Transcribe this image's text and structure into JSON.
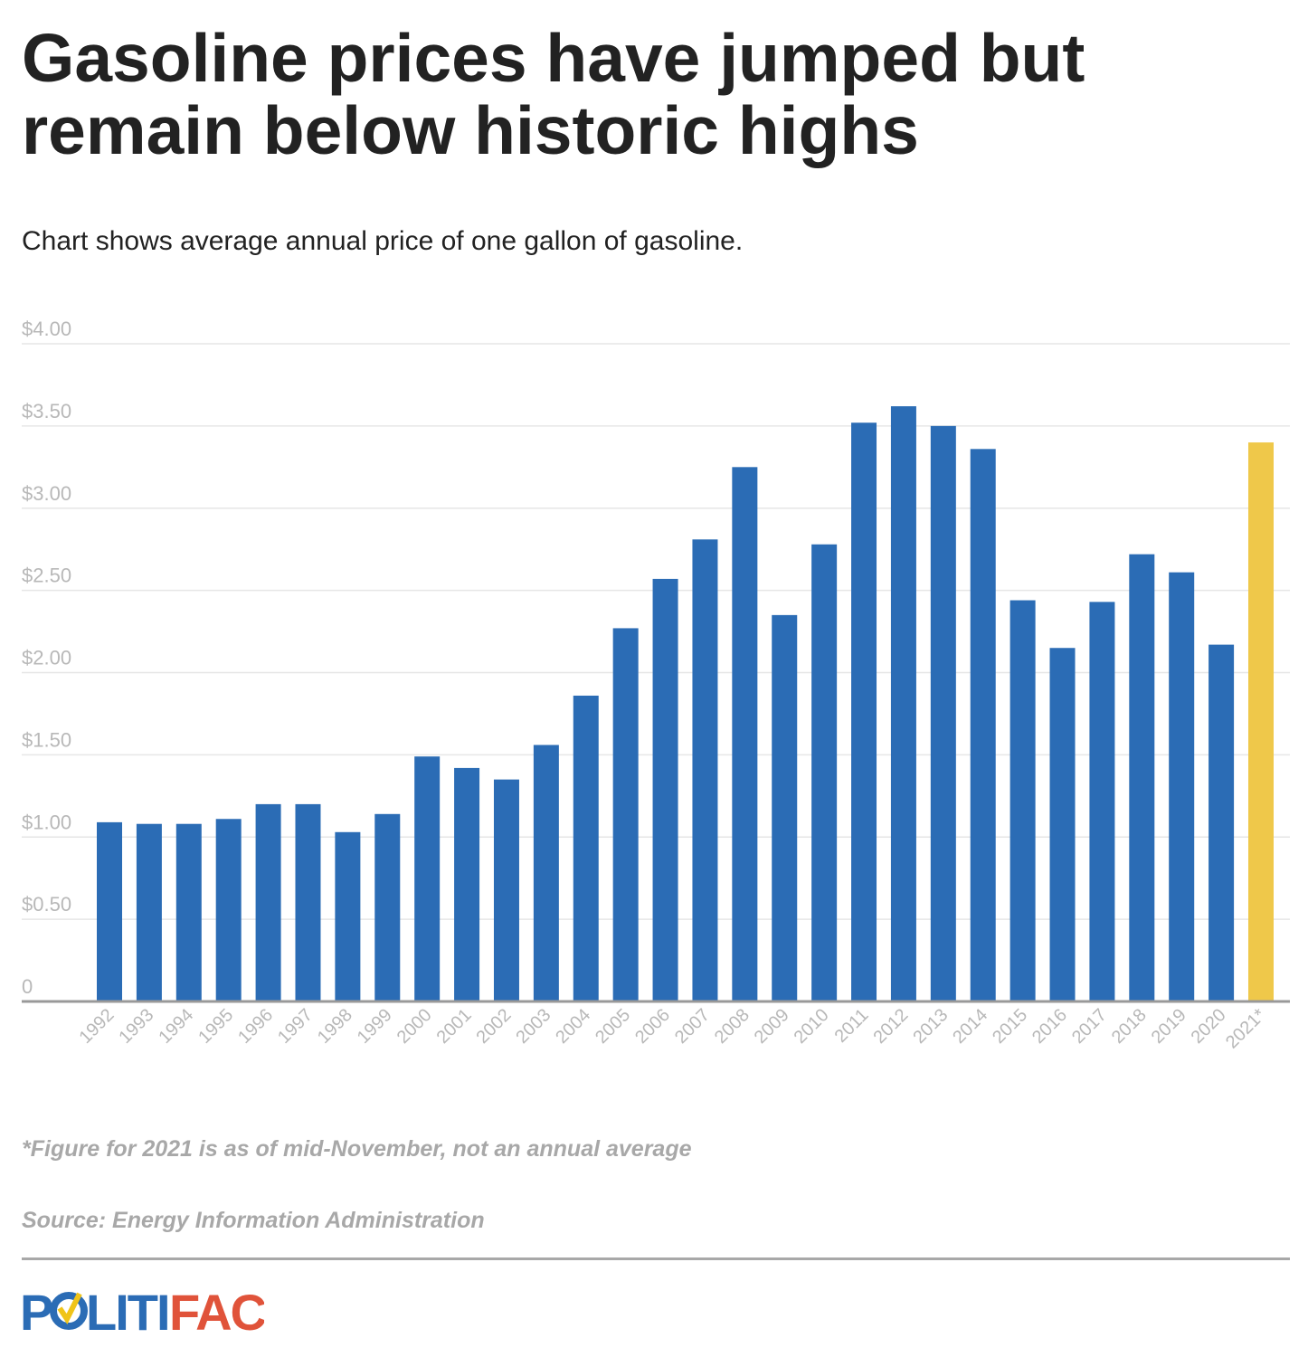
{
  "title": "Gasoline prices have jumped but remain below historic highs",
  "subtitle": "Chart shows average annual price of one gallon of gasoline.",
  "footnote": "*Figure for 2021 is as of mid-November, not an annual average",
  "source": "Source: Energy Information Administration",
  "logo": {
    "text_part1": "POLITI",
    "text_part2": "FACT",
    "colors": {
      "blue": "#2b6cb5",
      "red": "#e0533a",
      "yellow": "#f0c419"
    }
  },
  "chart_data": {
    "type": "bar",
    "title": "Gasoline prices have jumped but remain below historic highs",
    "xlabel": "",
    "ylabel": "",
    "ylim": [
      0,
      4
    ],
    "yticks": [
      0,
      0.5,
      1,
      1.5,
      2,
      2.5,
      3,
      3.5,
      4
    ],
    "ytick_labels": [
      "0",
      "$0.50",
      "$1.00",
      "$1.50",
      "$2.00",
      "$2.50",
      "$3.00",
      "$3.50",
      "$4.00"
    ],
    "grid": true,
    "categories": [
      "1992",
      "1993",
      "1994",
      "1995",
      "1996",
      "1997",
      "1998",
      "1999",
      "2000",
      "2001",
      "2002",
      "2003",
      "2004",
      "2005",
      "2006",
      "2007",
      "2008",
      "2009",
      "2010",
      "2011",
      "2012",
      "2013",
      "2014",
      "2015",
      "2016",
      "2017",
      "2018",
      "2019",
      "2020",
      "2021*"
    ],
    "values": [
      1.09,
      1.08,
      1.08,
      1.11,
      1.2,
      1.2,
      1.03,
      1.14,
      1.49,
      1.42,
      1.35,
      1.56,
      1.86,
      2.27,
      2.57,
      2.81,
      3.25,
      2.35,
      2.78,
      3.52,
      3.62,
      3.5,
      3.36,
      2.44,
      2.15,
      2.43,
      2.72,
      2.61,
      2.17,
      3.4
    ],
    "colors": {
      "default": "#2b6cb5",
      "highlight": "#efc84a",
      "highlight_category": "2021*"
    }
  }
}
